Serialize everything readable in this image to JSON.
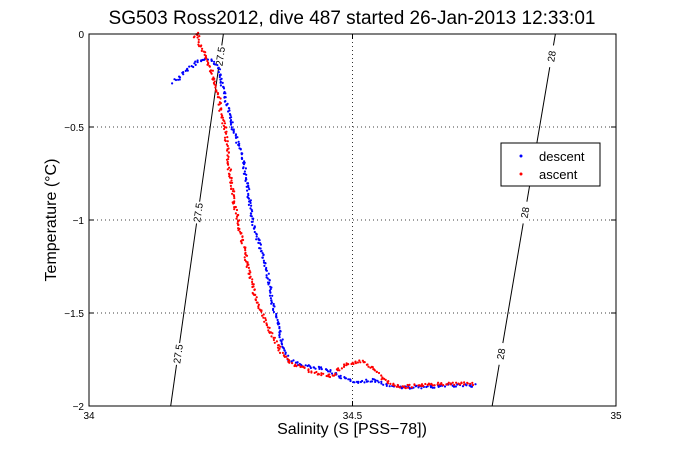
{
  "chart_data": {
    "type": "scatter",
    "title": "SG503 Ross2012, dive 487 started 26-Jan-2013 12:33:01",
    "xlabel": "Salinity (S [PSS−78])",
    "ylabel": "Temperature (°C)",
    "xlim": [
      34,
      35
    ],
    "ylim": [
      -2,
      0
    ],
    "xticks": [
      34,
      34.5,
      35
    ],
    "xtick_labels": [
      "34",
      "34.5",
      "35"
    ],
    "yticks": [
      -2,
      -1.5,
      -1,
      -0.5,
      0
    ],
    "ytick_labels": [
      "−2",
      "−1.5",
      "−1",
      "−0.5",
      "0"
    ],
    "grid": true,
    "legend_position": "right",
    "series": [
      {
        "name": "descent",
        "color": "#0000ff",
        "marker": "dot",
        "points": [
          [
            34.16,
            -0.26
          ],
          [
            34.17,
            -0.24
          ],
          [
            34.18,
            -0.21
          ],
          [
            34.185,
            -0.19
          ],
          [
            34.195,
            -0.17
          ],
          [
            34.205,
            -0.15
          ],
          [
            34.215,
            -0.14
          ],
          [
            34.225,
            -0.13
          ],
          [
            34.235,
            -0.15
          ],
          [
            34.245,
            -0.18
          ],
          [
            34.25,
            -0.24
          ],
          [
            34.255,
            -0.3
          ],
          [
            34.262,
            -0.38
          ],
          [
            34.268,
            -0.46
          ],
          [
            34.275,
            -0.52
          ],
          [
            34.282,
            -0.58
          ],
          [
            34.29,
            -0.66
          ],
          [
            34.295,
            -0.72
          ],
          [
            34.3,
            -0.8
          ],
          [
            34.305,
            -0.9
          ],
          [
            34.31,
            -1.0
          ],
          [
            34.32,
            -1.1
          ],
          [
            34.33,
            -1.2
          ],
          [
            34.338,
            -1.28
          ],
          [
            34.345,
            -1.38
          ],
          [
            34.35,
            -1.48
          ],
          [
            34.358,
            -1.56
          ],
          [
            34.365,
            -1.64
          ],
          [
            34.372,
            -1.7
          ],
          [
            34.38,
            -1.75
          ],
          [
            34.395,
            -1.77
          ],
          [
            34.42,
            -1.79
          ],
          [
            34.45,
            -1.8
          ],
          [
            34.47,
            -1.83
          ],
          [
            34.49,
            -1.86
          ],
          [
            34.51,
            -1.87
          ],
          [
            34.54,
            -1.86
          ],
          [
            34.57,
            -1.89
          ],
          [
            34.6,
            -1.9
          ],
          [
            34.64,
            -1.9
          ],
          [
            34.68,
            -1.89
          ],
          [
            34.72,
            -1.89
          ],
          [
            34.735,
            -1.89
          ]
        ]
      },
      {
        "name": "ascent",
        "color": "#ff0000",
        "marker": "dot",
        "points": [
          [
            34.2,
            -0.02
          ],
          [
            34.205,
            0.0
          ],
          [
            34.21,
            -0.05
          ],
          [
            34.218,
            -0.1
          ],
          [
            34.225,
            -0.15
          ],
          [
            34.235,
            -0.22
          ],
          [
            34.242,
            -0.3
          ],
          [
            34.248,
            -0.36
          ],
          [
            34.25,
            -0.42
          ],
          [
            34.258,
            -0.5
          ],
          [
            34.262,
            -0.6
          ],
          [
            34.265,
            -0.7
          ],
          [
            34.27,
            -0.8
          ],
          [
            34.275,
            -0.9
          ],
          [
            34.282,
            -1.0
          ],
          [
            34.29,
            -1.1
          ],
          [
            34.298,
            -1.2
          ],
          [
            34.305,
            -1.3
          ],
          [
            34.315,
            -1.4
          ],
          [
            34.328,
            -1.5
          ],
          [
            34.34,
            -1.58
          ],
          [
            34.355,
            -1.66
          ],
          [
            34.368,
            -1.72
          ],
          [
            34.38,
            -1.77
          ],
          [
            34.4,
            -1.79
          ],
          [
            34.43,
            -1.82
          ],
          [
            34.46,
            -1.84
          ],
          [
            34.49,
            -1.77
          ],
          [
            34.52,
            -1.76
          ],
          [
            34.54,
            -1.8
          ],
          [
            34.56,
            -1.86
          ],
          [
            34.59,
            -1.9
          ],
          [
            34.62,
            -1.89
          ],
          [
            34.66,
            -1.88
          ],
          [
            34.7,
            -1.88
          ],
          [
            34.73,
            -1.88
          ]
        ]
      }
    ],
    "density_contours": [
      {
        "label": "27.5",
        "from": [
          34.155,
          -2.0
        ],
        "to": [
          34.255,
          0.0
        ]
      },
      {
        "label": "28",
        "from": [
          34.765,
          -2.0
        ],
        "to": [
          34.885,
          0.0
        ]
      }
    ]
  }
}
